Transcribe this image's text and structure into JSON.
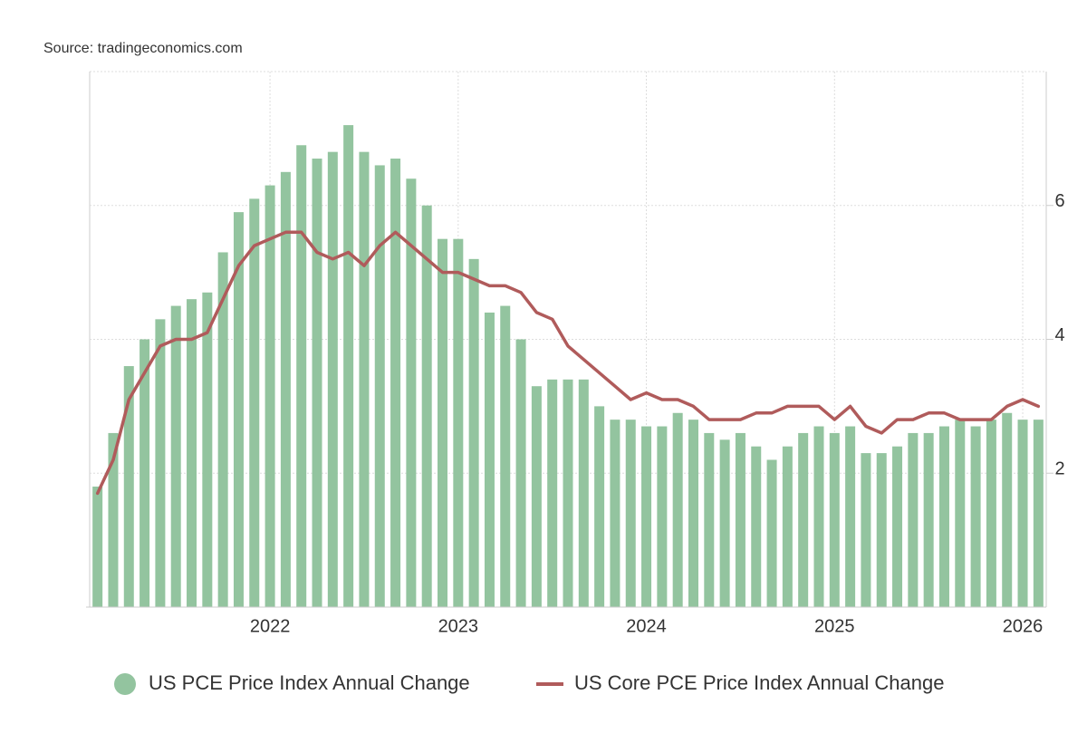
{
  "chart_data": {
    "type": "bar",
    "source": "Source: tradingeconomics.com",
    "categories": [
      null,
      null,
      null,
      null,
      null,
      null,
      null,
      null,
      null,
      null,
      null,
      "2022",
      null,
      null,
      null,
      null,
      null,
      null,
      null,
      null,
      null,
      null,
      null,
      "2023",
      null,
      null,
      null,
      null,
      null,
      null,
      null,
      null,
      null,
      null,
      null,
      "2024",
      null,
      null,
      null,
      null,
      null,
      null,
      null,
      null,
      null,
      null,
      null,
      "2025",
      null,
      null,
      null,
      null,
      null,
      null,
      null,
      null,
      null,
      null,
      null,
      "2026",
      null
    ],
    "series": [
      {
        "name": "US PCE Price Index Annual Change",
        "type": "bar",
        "color": "#93c49f",
        "values": [
          1.8,
          2.6,
          3.6,
          4.0,
          4.3,
          4.5,
          4.6,
          4.7,
          5.3,
          5.9,
          6.1,
          6.3,
          6.5,
          6.9,
          6.7,
          6.8,
          7.2,
          6.8,
          6.6,
          6.7,
          6.4,
          6.0,
          5.5,
          5.5,
          5.2,
          4.4,
          4.5,
          4.0,
          3.3,
          3.4,
          3.4,
          3.4,
          3.0,
          2.8,
          2.8,
          2.7,
          2.7,
          2.9,
          2.8,
          2.6,
          2.5,
          2.6,
          2.4,
          2.2,
          2.4,
          2.6,
          2.7,
          2.6,
          2.7,
          2.3,
          2.3,
          2.4,
          2.6,
          2.6,
          2.7,
          2.8,
          2.7,
          2.8,
          2.9,
          2.8,
          2.8
        ]
      },
      {
        "name": "US Core PCE Price Index Annual Change",
        "type": "line",
        "color": "#b05b5b",
        "values": [
          1.7,
          2.2,
          3.1,
          3.5,
          3.9,
          4.0,
          4.0,
          4.1,
          4.6,
          5.1,
          5.4,
          5.5,
          5.6,
          5.6,
          5.3,
          5.2,
          5.3,
          5.1,
          5.4,
          5.6,
          5.4,
          5.2,
          5.0,
          5.0,
          4.9,
          4.8,
          4.8,
          4.7,
          4.4,
          4.3,
          3.9,
          3.7,
          3.5,
          3.3,
          3.1,
          3.2,
          3.1,
          3.1,
          3.0,
          2.8,
          2.8,
          2.8,
          2.9,
          2.9,
          3.0,
          3.0,
          3.0,
          2.8,
          3.0,
          2.7,
          2.6,
          2.8,
          2.8,
          2.9,
          2.9,
          2.8,
          2.8,
          2.8,
          3.0,
          3.1,
          3.0
        ]
      }
    ],
    "ylim": [
      0,
      8
    ],
    "yticks": [
      2,
      4,
      6
    ],
    "grid": true,
    "legend": "bottom"
  }
}
